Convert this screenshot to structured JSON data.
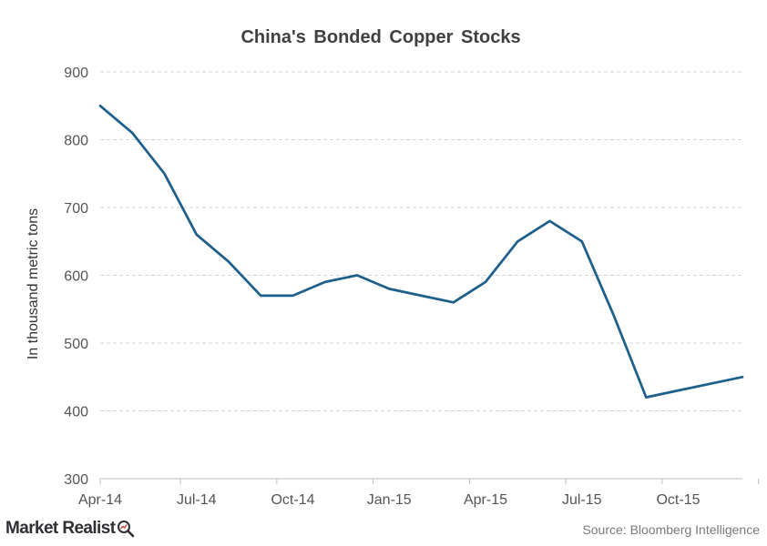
{
  "chart_data": {
    "type": "line",
    "title": "China's Bonded Copper Stocks",
    "ylabel": "In thousand metric tons",
    "xlabel": "",
    "ylim": [
      300,
      900
    ],
    "yticks": [
      300,
      400,
      500,
      600,
      700,
      800,
      900
    ],
    "x": [
      "2014-04",
      "2014-05",
      "2014-06",
      "2014-07",
      "2014-08",
      "2014-09",
      "2014-10",
      "2014-11",
      "2014-12",
      "2015-01",
      "2015-02",
      "2015-03",
      "2015-04",
      "2015-05",
      "2015-06",
      "2015-07",
      "2015-08",
      "2015-09",
      "2015-10",
      "2015-11",
      "2015-12"
    ],
    "xticks": [
      {
        "x": "2014-04",
        "label": "Apr-14"
      },
      {
        "x": "2014-07",
        "label": "Jul-14"
      },
      {
        "x": "2014-10",
        "label": "Oct-14"
      },
      {
        "x": "2015-01",
        "label": "Jan-15"
      },
      {
        "x": "2015-04",
        "label": "Apr-15"
      },
      {
        "x": "2015-07",
        "label": "Jul-15"
      },
      {
        "x": "2015-10",
        "label": "Oct-15"
      }
    ],
    "series": [
      {
        "values": [
          850,
          810,
          750,
          660,
          620,
          570,
          570,
          590,
          600,
          580,
          570,
          560,
          590,
          650,
          680,
          650,
          540,
          420,
          430,
          440,
          450
        ]
      }
    ],
    "grid": true,
    "gridlines": "horizontal dashed",
    "legend": "none",
    "line_color": "#1f5f8b"
  },
  "source_text": "Source:  Bloomberg Intelligence",
  "brand": {
    "name": "Market Realist",
    "icon": "magnifier-chart-icon"
  }
}
